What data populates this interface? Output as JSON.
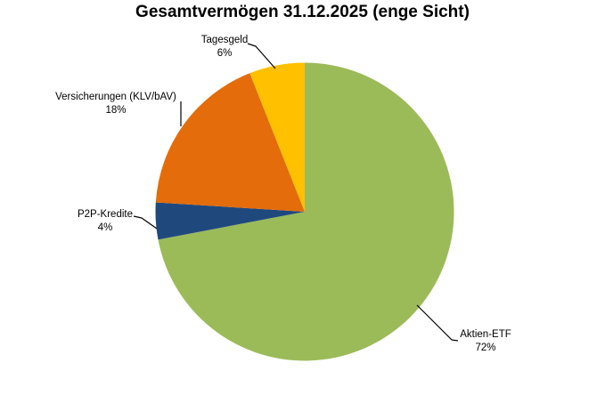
{
  "chart_data": {
    "type": "pie",
    "title": "Gesamtvermögen 31.12.2025 (enge Sicht)",
    "direction": "clockwise",
    "start_angle_deg": 0,
    "legend": "none",
    "background": "#ffffff",
    "slices": [
      {
        "label": "Aktien-ETF",
        "value": 72,
        "pct_text": "72%",
        "color": "#9BBB59"
      },
      {
        "label": "P2P-Kredite",
        "value": 4,
        "pct_text": "4%",
        "color": "#1F497D"
      },
      {
        "label": "Versicherungen (KLV/bAV)",
        "value": 18,
        "pct_text": "18%",
        "color": "#E46C0A"
      },
      {
        "label": "Tagesgeld",
        "value": 6,
        "pct_text": "6%",
        "color": "#FFC000"
      }
    ]
  }
}
